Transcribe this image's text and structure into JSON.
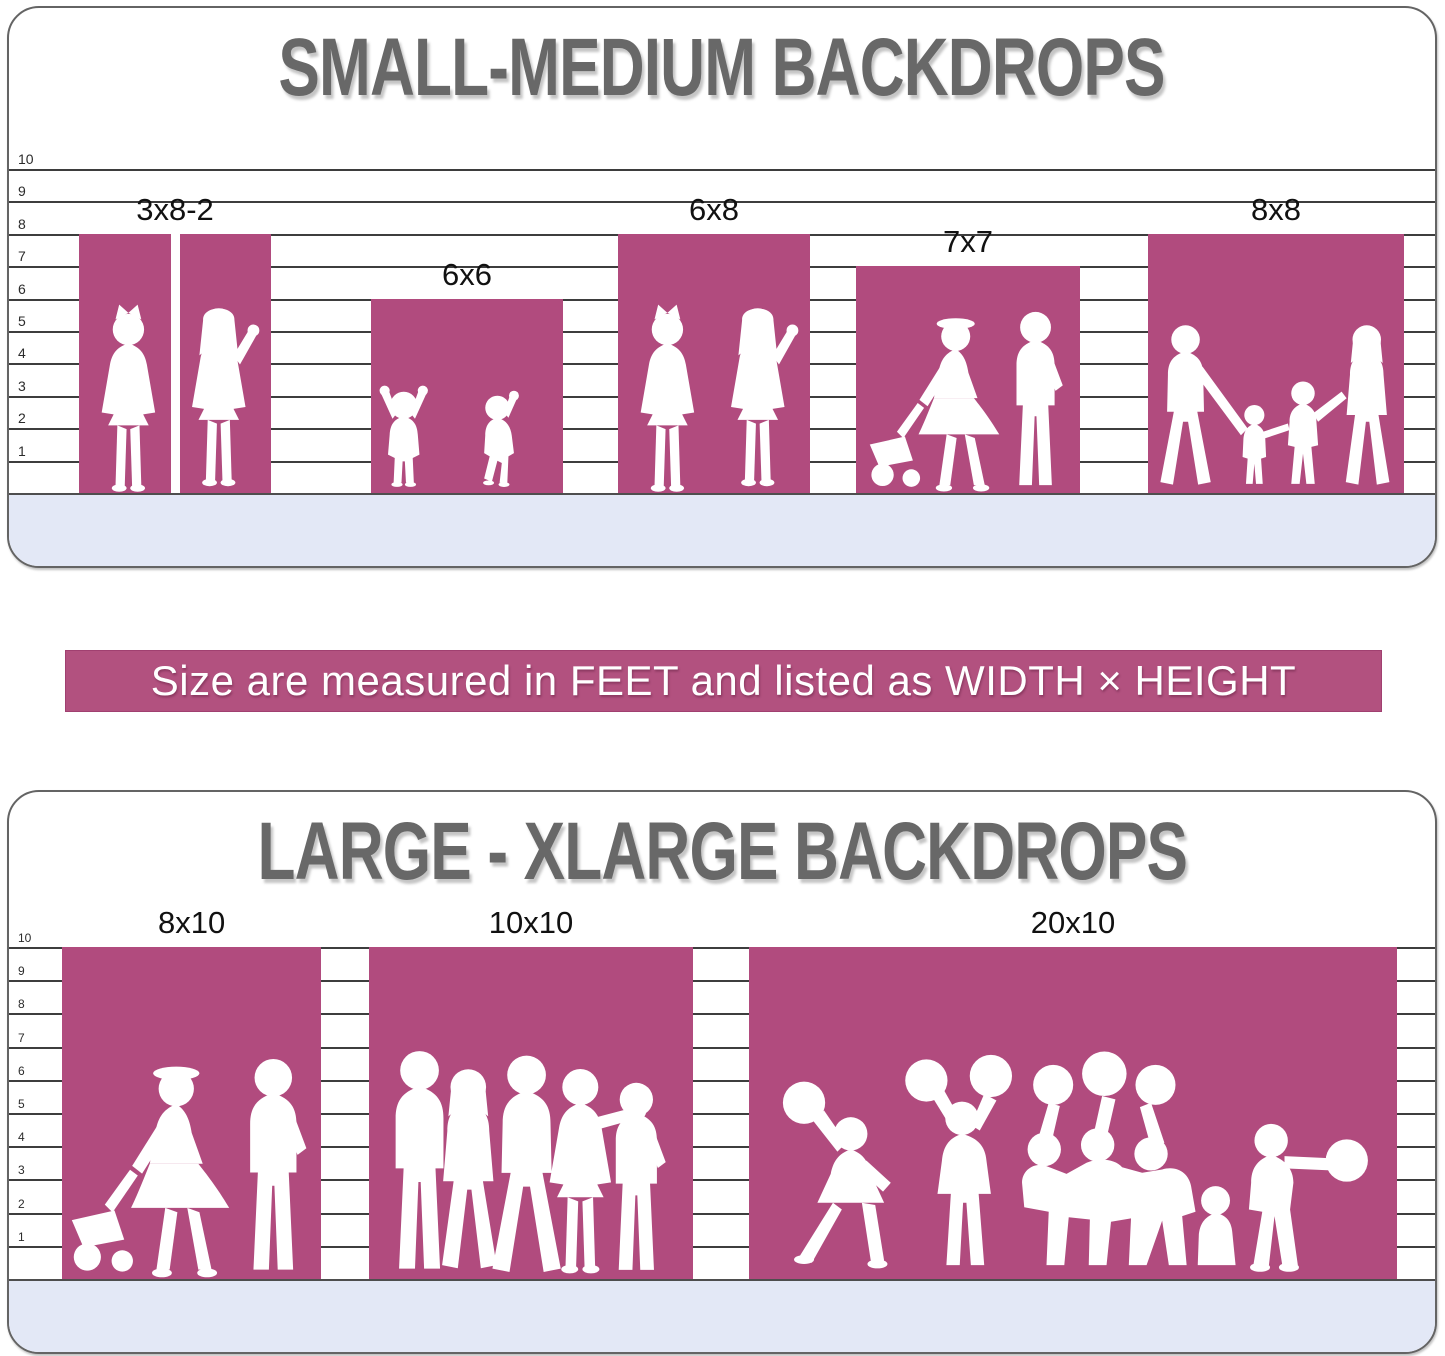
{
  "colors": {
    "backdrop_pink": "#b14b7e",
    "banner_pink": "#b2517f",
    "floor_lavender": "#e3e8f6",
    "title_gray": "#686868",
    "line_dark": "#3d3d3d",
    "label_black": "#111111",
    "banner_text_white": "#ffffff"
  },
  "banner": {
    "text": "Size are measured in FEET and listed as WIDTH × HEIGHT"
  },
  "sections": [
    {
      "title": "SMALL-MEDIUM BACKDROPS",
      "scale_unit": "feet",
      "scale_feet": [
        10,
        9,
        8,
        7,
        6,
        5,
        4,
        3,
        2,
        1
      ],
      "backdrops": [
        {
          "label": "3x8-2",
          "width_ft": 6,
          "height_ft": 8,
          "panels": 2,
          "silhouette": "two-girls-icon"
        },
        {
          "label": "6x6",
          "width_ft": 6,
          "height_ft": 6,
          "panels": 1,
          "silhouette": "two-toddlers-icon"
        },
        {
          "label": "6x8",
          "width_ft": 6,
          "height_ft": 8,
          "panels": 1,
          "silhouette": "two-girls-icon"
        },
        {
          "label": "7x7",
          "width_ft": 7,
          "height_ft": 7,
          "panels": 1,
          "silhouette": "stroller-couple-icon"
        },
        {
          "label": "8x8",
          "width_ft": 8,
          "height_ft": 8,
          "panels": 1,
          "silhouette": "family-walking-icon"
        }
      ]
    },
    {
      "title": "LARGE - XLARGE BACKDROPS",
      "scale_unit": "feet",
      "scale_feet": [
        10,
        9,
        8,
        7,
        6,
        5,
        4,
        3,
        2,
        1
      ],
      "backdrops": [
        {
          "label": "8x10",
          "width_ft": 8,
          "height_ft": 10,
          "panels": 1,
          "silhouette": "stroller-couple-icon"
        },
        {
          "label": "10x10",
          "width_ft": 10,
          "height_ft": 10,
          "panels": 1,
          "silhouette": "group-five-icon"
        },
        {
          "label": "20x10",
          "width_ft": 20,
          "height_ft": 10,
          "panels": 1,
          "silhouette": "cheer-squad-icon"
        }
      ]
    }
  ],
  "chart_data": {
    "type": "bar",
    "title": "Backdrop size comparison in feet",
    "ylabel": "feet",
    "ylim": [
      0,
      10
    ],
    "grid": true,
    "series": [
      {
        "name": "SMALL-MEDIUM BACKDROPS",
        "categories": [
          "3x8-2",
          "6x6",
          "6x8",
          "7x7",
          "8x8"
        ],
        "width_ft": [
          6,
          6,
          6,
          7,
          8
        ],
        "height_ft": [
          8,
          6,
          8,
          7,
          8
        ]
      },
      {
        "name": "LARGE - XLARGE BACKDROPS",
        "categories": [
          "8x10",
          "10x10",
          "20x10"
        ],
        "width_ft": [
          8,
          10,
          20
        ],
        "height_ft": [
          10,
          10,
          10
        ]
      }
    ]
  }
}
